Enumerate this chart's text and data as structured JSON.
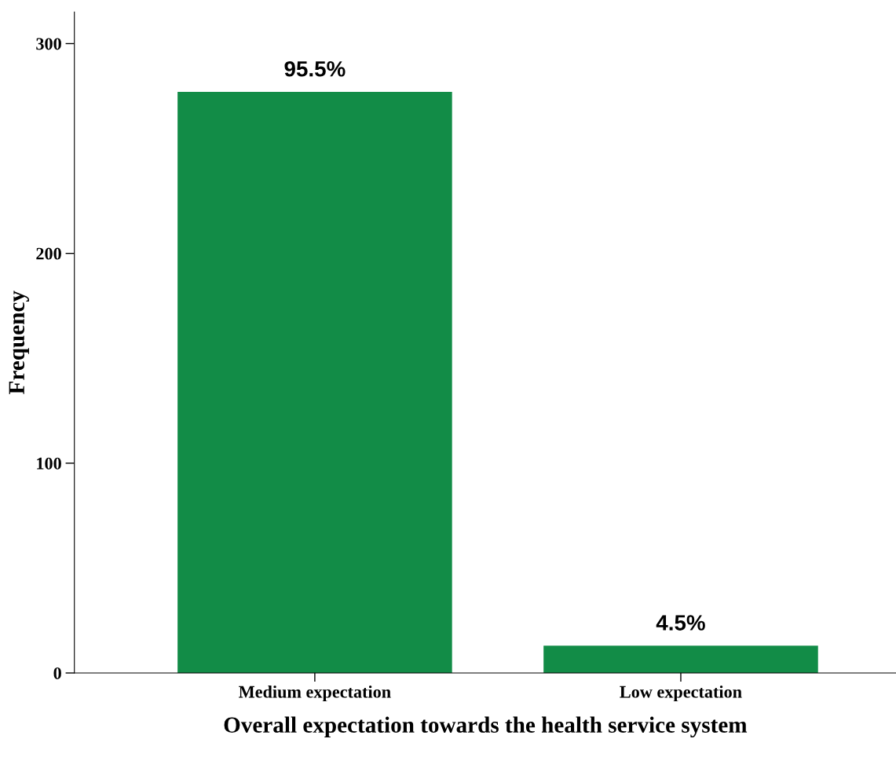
{
  "chart_data": {
    "type": "bar",
    "xlabel": "Overall expectation towards the health service system",
    "ylabel": "Frequency",
    "categories": [
      "Medium expectation",
      "Low expectation"
    ],
    "values": [
      277,
      13
    ],
    "color": "#128c47",
    "annotations": [
      {
        "text": "95.5%",
        "x": "Medium expectation",
        "y": 277
      },
      {
        "text": "4.5%",
        "x": "Low expectation",
        "y": 13
      }
    ],
    "ylim": [
      0,
      315
    ],
    "yticks": [
      0,
      100,
      200,
      300
    ],
    "grid": false,
    "legend": false
  }
}
